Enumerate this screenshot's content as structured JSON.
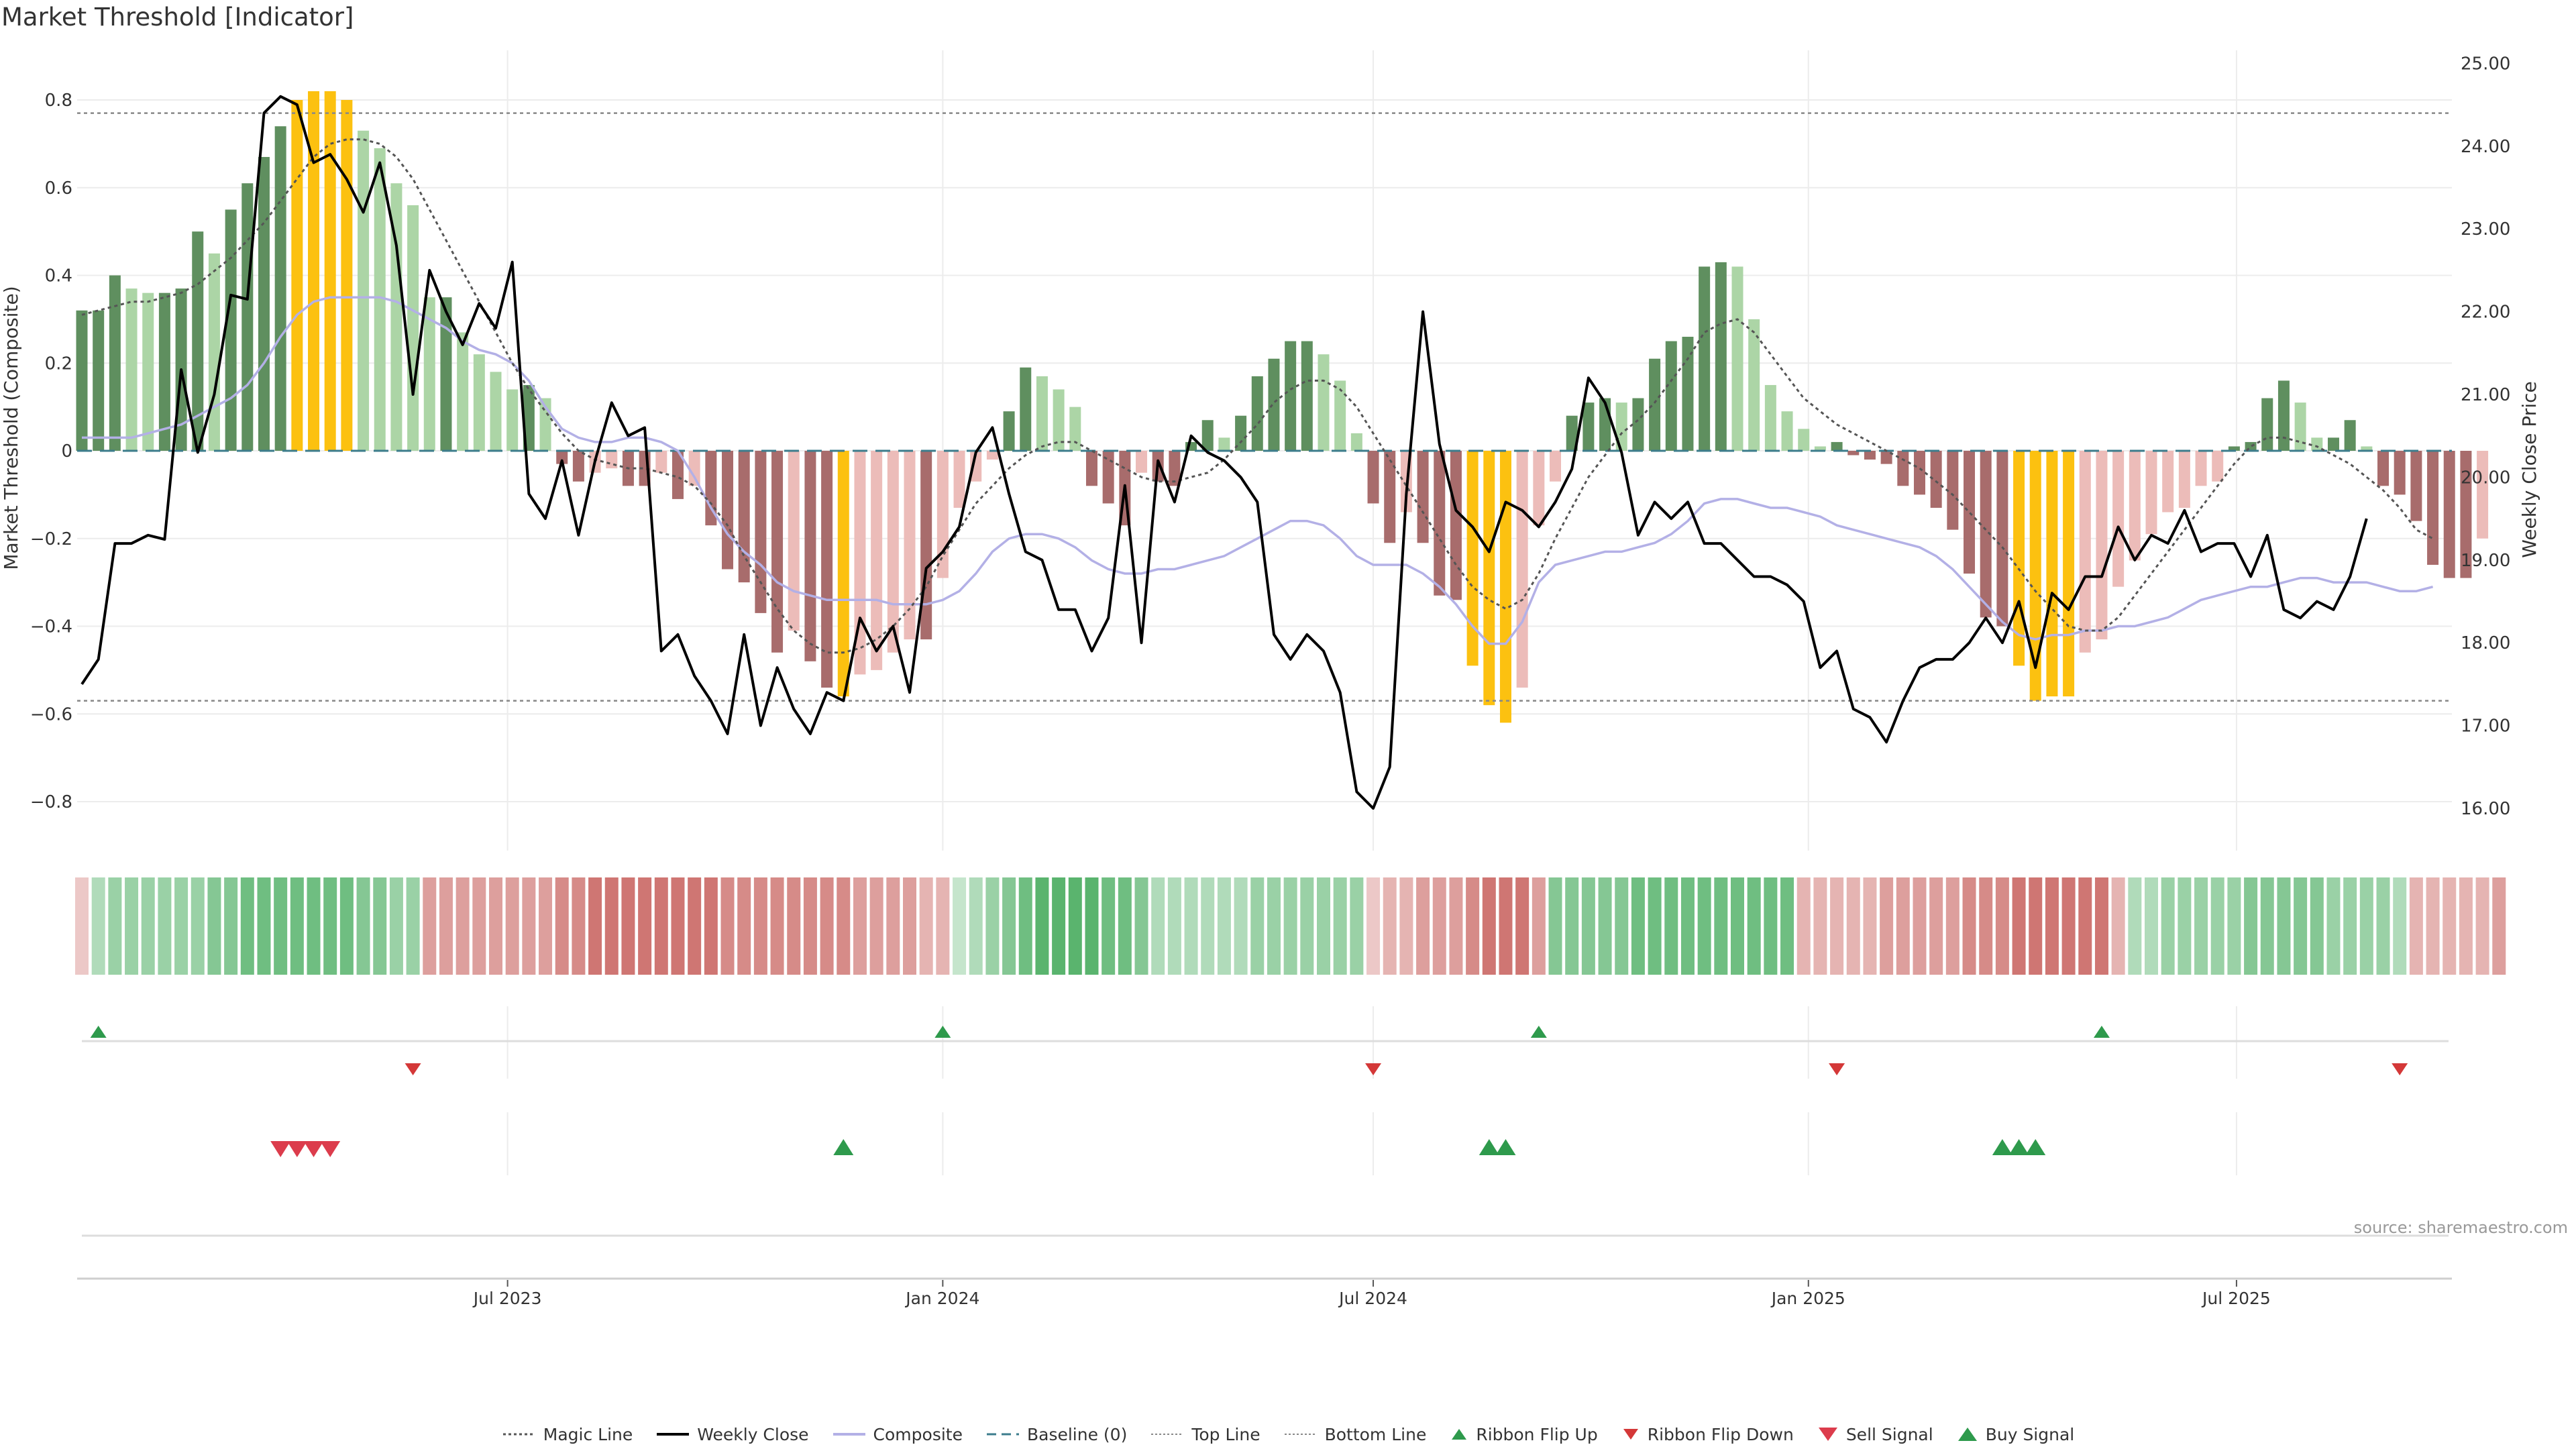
{
  "title": "Market Threshold [Indicator]",
  "source": "source: sharemaestro.com",
  "legend": {
    "magic": "Magic Line",
    "close": "Weekly Close",
    "composite": "Composite",
    "baseline": "Baseline (0)",
    "top": "Top Line",
    "bottom": "Bottom Line",
    "flip_up": "Ribbon Flip Up",
    "flip_down": "Ribbon Flip Down",
    "sell": "Sell Signal",
    "buy": "Buy Signal"
  },
  "colors": {
    "bar_strong_pos": "#5f8f5f",
    "bar_weak_pos": "#acd5a6",
    "bar_strong_neg": "#a86c6c",
    "bar_weak_neg": "#ecbcb9",
    "bar_extreme": "#fcc110",
    "close": "#000000",
    "magic": "#555555",
    "composite": "#b3b0e6",
    "baseline": "#3c7c8c",
    "ribbon_pos": "#5ab46e",
    "ribbon_neg": "#c8625e",
    "flip_up": "#2e9a4c",
    "flip_down": "#d43838",
    "sell": "#dc3c4c",
    "buy": "#2e9a4c"
  },
  "chart_data": {
    "type": "bar",
    "ylabel": "Market Threshold (Composite)",
    "y2label": "Weekly Close Price",
    "ylim": [
      -0.91,
      0.91
    ],
    "y2lim": [
      15.5,
      25.2
    ],
    "yticks": [
      "0.8",
      "0.6",
      "0.4",
      "0.2",
      "0",
      "−0.2",
      "−0.4",
      "−0.6",
      "−0.8"
    ],
    "y2ticks": [
      "25.00",
      "24.00",
      "23.00",
      "22.00",
      "21.00",
      "20.00",
      "19.00",
      "18.00",
      "17.00",
      "16.00"
    ],
    "xticks": [
      "Jul 2023",
      "Jan 2024",
      "Jul 2024",
      "Jan 2025",
      "Jul 2025"
    ],
    "top_line": 0.77,
    "bottom_line": -0.57,
    "baseline": 0,
    "grid": true,
    "legend_position": "bottom",
    "start_date": "2023-01-02",
    "week_step": 7,
    "series": [
      {
        "name": "Market Threshold (Composite)",
        "values": [
          0.32,
          0.32,
          0.4,
          0.37,
          0.36,
          0.36,
          0.37,
          0.5,
          0.45,
          0.55,
          0.61,
          0.67,
          0.74,
          0.8,
          0.82,
          0.82,
          0.8,
          0.73,
          0.69,
          0.61,
          0.56,
          0.35,
          0.35,
          0.27,
          0.22,
          0.18,
          0.14,
          0.15,
          0.12,
          -0.03,
          -0.07,
          -0.05,
          -0.04,
          -0.08,
          -0.08,
          -0.05,
          -0.11,
          -0.08,
          -0.17,
          -0.27,
          -0.3,
          -0.37,
          -0.46,
          -0.41,
          -0.48,
          -0.54,
          -0.56,
          -0.51,
          -0.5,
          -0.46,
          -0.43,
          -0.43,
          -0.29,
          -0.13,
          -0.07,
          -0.02,
          0.09,
          0.19,
          0.17,
          0.14,
          0.1,
          -0.08,
          -0.12,
          -0.17,
          -0.05,
          -0.07,
          -0.08,
          0.02,
          0.07,
          0.03,
          0.08,
          0.17,
          0.21,
          0.25,
          0.25,
          0.22,
          0.16,
          0.04,
          -0.12,
          -0.21,
          -0.14,
          -0.21,
          -0.33,
          -0.34,
          -0.49,
          -0.58,
          -0.62,
          -0.54,
          -0.17,
          -0.07,
          0.08,
          0.11,
          0.12,
          0.11,
          0.12,
          0.21,
          0.25,
          0.26,
          0.42,
          0.43,
          0.42,
          0.3,
          0.15,
          0.09,
          0.05,
          0.01,
          0.02,
          -0.01,
          -0.02,
          -0.03,
          -0.08,
          -0.1,
          -0.13,
          -0.18,
          -0.28,
          -0.38,
          -0.4,
          -0.49,
          -0.57,
          -0.56,
          -0.56,
          -0.46,
          -0.43,
          -0.31,
          -0.25,
          -0.19,
          -0.14,
          -0.13,
          -0.08,
          -0.07,
          0.01,
          0.02,
          0.12,
          0.16,
          0.11,
          0.03,
          0.03,
          0.07,
          0.01,
          -0.08,
          -0.1,
          -0.16,
          -0.26,
          -0.29,
          -0.29,
          -0.2
        ]
      },
      {
        "name": "Weekly Close",
        "values": [
          17.5,
          17.8,
          19.2,
          19.2,
          19.3,
          19.25,
          21.3,
          20.3,
          21.0,
          22.2,
          22.15,
          24.4,
          24.6,
          24.5,
          23.8,
          23.9,
          23.6,
          23.2,
          23.8,
          22.8,
          21.0,
          22.5,
          22.0,
          21.6,
          22.1,
          21.8,
          22.6,
          19.8,
          19.5,
          20.2,
          19.3,
          20.2,
          20.9,
          20.5,
          20.6,
          17.9,
          18.1,
          17.6,
          17.3,
          16.9,
          18.1,
          17.0,
          17.7,
          17.2,
          16.9,
          17.4,
          17.3,
          18.3,
          17.9,
          18.2,
          17.4,
          18.9,
          19.1,
          19.4,
          20.3,
          20.6,
          19.8,
          19.1,
          19.0,
          18.4,
          18.4,
          17.9,
          18.3,
          19.9,
          18.0,
          20.2,
          19.7,
          20.5,
          20.3,
          20.2,
          20.0,
          19.7,
          18.1,
          17.8,
          18.1,
          17.9,
          17.4,
          16.2,
          16.0,
          16.5,
          19.8,
          22.0,
          20.4,
          19.6,
          19.4,
          19.1,
          19.7,
          19.6,
          19.4,
          19.7,
          20.1,
          21.2,
          20.9,
          20.3,
          19.3,
          19.7,
          19.5,
          19.7,
          19.2,
          19.2,
          19.0,
          18.8,
          18.8,
          18.7,
          18.5,
          17.7,
          17.9,
          17.2,
          17.1,
          16.8,
          17.3,
          17.7,
          17.8,
          17.8,
          18.0,
          18.3,
          18.0,
          18.5,
          17.7,
          18.6,
          18.4,
          18.8,
          18.8,
          19.4,
          19.0,
          19.3,
          19.2,
          19.6,
          19.1,
          19.2,
          19.2,
          18.8,
          19.3,
          18.4,
          18.3,
          18.5,
          18.4,
          18.8,
          19.5
        ]
      },
      {
        "name": "Magic Line",
        "values": [
          0.31,
          0.32,
          0.33,
          0.34,
          0.34,
          0.35,
          0.36,
          0.38,
          0.41,
          0.44,
          0.48,
          0.52,
          0.57,
          0.62,
          0.67,
          0.7,
          0.71,
          0.71,
          0.7,
          0.67,
          0.62,
          0.55,
          0.48,
          0.41,
          0.34,
          0.27,
          0.2,
          0.14,
          0.09,
          0.04,
          0.0,
          -0.02,
          -0.03,
          -0.04,
          -0.04,
          -0.05,
          -0.06,
          -0.08,
          -0.12,
          -0.17,
          -0.24,
          -0.3,
          -0.36,
          -0.41,
          -0.44,
          -0.46,
          -0.46,
          -0.45,
          -0.43,
          -0.4,
          -0.36,
          -0.31,
          -0.24,
          -0.18,
          -0.12,
          -0.08,
          -0.04,
          -0.01,
          0.01,
          0.02,
          0.02,
          0.0,
          -0.02,
          -0.04,
          -0.06,
          -0.07,
          -0.07,
          -0.06,
          -0.05,
          -0.02,
          0.02,
          0.06,
          0.11,
          0.14,
          0.16,
          0.16,
          0.14,
          0.1,
          0.04,
          -0.02,
          -0.08,
          -0.14,
          -0.2,
          -0.26,
          -0.31,
          -0.34,
          -0.36,
          -0.34,
          -0.28,
          -0.2,
          -0.13,
          -0.06,
          -0.01,
          0.04,
          0.07,
          0.11,
          0.16,
          0.21,
          0.27,
          0.29,
          0.3,
          0.27,
          0.22,
          0.17,
          0.12,
          0.09,
          0.06,
          0.04,
          0.02,
          0.0,
          -0.02,
          -0.04,
          -0.07,
          -0.1,
          -0.14,
          -0.18,
          -0.22,
          -0.27,
          -0.32,
          -0.36,
          -0.4,
          -0.41,
          -0.41,
          -0.38,
          -0.33,
          -0.28,
          -0.23,
          -0.18,
          -0.13,
          -0.08,
          -0.03,
          0.01,
          0.03,
          0.03,
          0.02,
          0.01,
          -0.01,
          -0.03,
          -0.06,
          -0.09,
          -0.13,
          -0.18,
          -0.2
        ]
      },
      {
        "name": "Composite",
        "values": [
          0.03,
          0.03,
          0.03,
          0.03,
          0.04,
          0.05,
          0.06,
          0.08,
          0.1,
          0.12,
          0.15,
          0.2,
          0.26,
          0.31,
          0.34,
          0.35,
          0.35,
          0.35,
          0.35,
          0.34,
          0.32,
          0.3,
          0.28,
          0.25,
          0.23,
          0.22,
          0.2,
          0.16,
          0.1,
          0.05,
          0.03,
          0.02,
          0.02,
          0.03,
          0.03,
          0.02,
          0.0,
          -0.06,
          -0.13,
          -0.19,
          -0.23,
          -0.26,
          -0.3,
          -0.32,
          -0.33,
          -0.34,
          -0.34,
          -0.34,
          -0.34,
          -0.35,
          -0.35,
          -0.35,
          -0.34,
          -0.32,
          -0.28,
          -0.23,
          -0.2,
          -0.19,
          -0.19,
          -0.2,
          -0.22,
          -0.25,
          -0.27,
          -0.28,
          -0.28,
          -0.27,
          -0.27,
          -0.26,
          -0.25,
          -0.24,
          -0.22,
          -0.2,
          -0.18,
          -0.16,
          -0.16,
          -0.17,
          -0.2,
          -0.24,
          -0.26,
          -0.26,
          -0.26,
          -0.28,
          -0.31,
          -0.35,
          -0.4,
          -0.44,
          -0.44,
          -0.39,
          -0.3,
          -0.26,
          -0.25,
          -0.24,
          -0.23,
          -0.23,
          -0.22,
          -0.21,
          -0.19,
          -0.16,
          -0.12,
          -0.11,
          -0.11,
          -0.12,
          -0.13,
          -0.13,
          -0.14,
          -0.15,
          -0.17,
          -0.18,
          -0.19,
          -0.2,
          -0.21,
          -0.22,
          -0.24,
          -0.27,
          -0.31,
          -0.35,
          -0.39,
          -0.42,
          -0.43,
          -0.42,
          -0.42,
          -0.41,
          -0.41,
          -0.4,
          -0.4,
          -0.39,
          -0.38,
          -0.36,
          -0.34,
          -0.33,
          -0.32,
          -0.31,
          -0.31,
          -0.3,
          -0.29,
          -0.29,
          -0.3,
          -0.3,
          -0.3,
          -0.31,
          -0.32,
          -0.32,
          -0.31
        ]
      }
    ],
    "extreme_bar_indices": [
      13,
      14,
      15,
      16,
      46,
      84,
      85,
      86,
      117,
      118,
      119,
      120
    ],
    "ribbon": [
      -1,
      2,
      3,
      3,
      3,
      3,
      3,
      3,
      4,
      4,
      5,
      5,
      5,
      5,
      5,
      5,
      5,
      4,
      4,
      3,
      3,
      -3,
      -3,
      -3,
      -3,
      -3,
      -3,
      -3,
      -3,
      -4,
      -4,
      -5,
      -5,
      -5,
      -5,
      -5,
      -5,
      -5,
      -5,
      -4,
      -4,
      -4,
      -4,
      -4,
      -4,
      -4,
      -4,
      -3,
      -3,
      -3,
      -3,
      -2,
      -2,
      1,
      2,
      3,
      4,
      5,
      6,
      6,
      6,
      6,
      5,
      5,
      4,
      2,
      2,
      2,
      2,
      2,
      2,
      3,
      3,
      3,
      3,
      3,
      3,
      3,
      -1,
      -2,
      -2,
      -3,
      -3,
      -3,
      -4,
      -5,
      -5,
      -5,
      -3,
      4,
      4,
      4,
      4,
      4,
      5,
      5,
      5,
      5,
      5,
      5,
      5,
      5,
      5,
      5,
      -2,
      -2,
      -2,
      -2,
      -2,
      -3,
      -3,
      -3,
      -3,
      -3,
      -4,
      -4,
      -4,
      -5,
      -5,
      -5,
      -5,
      -5,
      -5,
      -2,
      2,
      2,
      3,
      3,
      3,
      3,
      3,
      4,
      4,
      4,
      4,
      4,
      3,
      3,
      3,
      3,
      2,
      -2,
      -2,
      -2,
      -2,
      -2,
      -3
    ],
    "flip_up_indices": [
      1,
      52,
      88,
      122
    ],
    "flip_down_indices": [
      20,
      78,
      106,
      140
    ],
    "sell_indices": [
      12,
      13,
      14,
      15
    ],
    "buy_indices": [
      46,
      85,
      86,
      116,
      117,
      118
    ]
  }
}
